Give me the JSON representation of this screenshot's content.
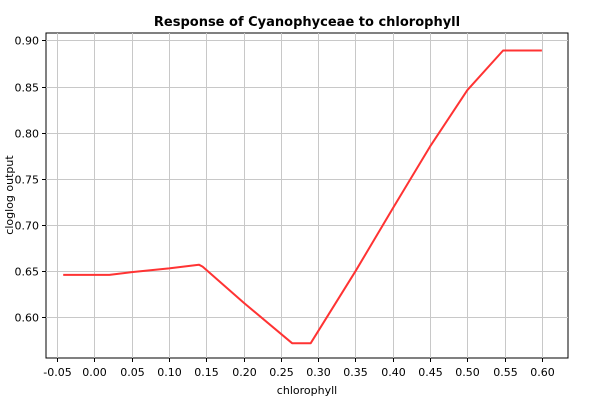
{
  "chart_data": {
    "type": "line",
    "title": "Response of Cyanophyceae to chlorophyll",
    "xlabel": "chlorophyll",
    "ylabel": "cloglog output",
    "xlim": [
      -0.065,
      0.635
    ],
    "ylim": [
      0.556,
      0.908
    ],
    "x_ticks": [
      -0.05,
      0.0,
      0.05,
      0.1,
      0.15,
      0.2,
      0.25,
      0.3,
      0.35,
      0.4,
      0.45,
      0.5,
      0.55,
      0.6
    ],
    "x_tick_labels": [
      "-0.05",
      "0.00",
      "0.05",
      "0.10",
      "0.15",
      "0.20",
      "0.25",
      "0.30",
      "0.35",
      "0.40",
      "0.45",
      "0.50",
      "0.55",
      "0.60"
    ],
    "y_ticks": [
      0.6,
      0.65,
      0.7,
      0.75,
      0.8,
      0.85,
      0.9
    ],
    "y_tick_labels": [
      "0.60",
      "0.65",
      "0.70",
      "0.75",
      "0.80",
      "0.85",
      "0.90"
    ],
    "grid": true,
    "series": [
      {
        "color": "#ff3333",
        "x": [
          -0.042,
          0.02,
          0.05,
          0.1,
          0.14,
          0.145,
          0.2,
          0.265,
          0.29,
          0.35,
          0.4,
          0.45,
          0.5,
          0.548,
          0.553,
          0.6
        ],
        "y": [
          0.646,
          0.646,
          0.649,
          0.653,
          0.657,
          0.655,
          0.616,
          0.572,
          0.572,
          0.65,
          0.718,
          0.785,
          0.846,
          0.889,
          0.889,
          0.889
        ]
      }
    ]
  }
}
